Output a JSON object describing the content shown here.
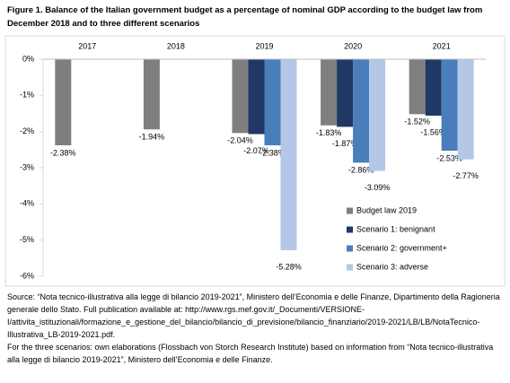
{
  "chart_data": {
    "type": "bar",
    "title": "Figure 1. Balance of the Italian government budget as a percentage of nominal GDP according to the budget law from December 2018 and to three different scenarios",
    "categories": [
      "2017",
      "2018",
      "2019",
      "2020",
      "2021"
    ],
    "series": [
      {
        "name": "Budget law 2019",
        "color": "#7f7f7f",
        "values": [
          -2.38,
          -1.94,
          -2.04,
          -1.83,
          -1.52
        ],
        "value_labels": [
          "-2.38%",
          "-1.94%",
          "-2.04%",
          "-1.83%",
          "-1.52%"
        ]
      },
      {
        "name": "Scenario 1: benignant",
        "color": "#1f3864",
        "values": [
          null,
          null,
          -2.07,
          -1.87,
          -1.56
        ],
        "value_labels": [
          null,
          null,
          "-2.07%",
          "-1.87%",
          "-1.56%"
        ]
      },
      {
        "name": "Scenario 2: government+",
        "color": "#4a7ebb",
        "values": [
          null,
          null,
          -2.38,
          -2.86,
          -2.53
        ],
        "value_labels": [
          null,
          null,
          "-2.38%",
          "-2.86%",
          "-2.53%"
        ]
      },
      {
        "name": "Scenario 3: adverse",
        "color": "#b4c7e7",
        "values": [
          null,
          null,
          -5.28,
          -3.09,
          -2.77
        ],
        "value_labels": [
          null,
          null,
          "-5.28%",
          "-3.09%",
          "-2.77%"
        ]
      }
    ],
    "ylim": [
      -6,
      0
    ],
    "yticks": [
      {
        "value": 0,
        "label": "0%"
      },
      {
        "value": -1,
        "label": "-1%"
      },
      {
        "value": -2,
        "label": "-2%"
      },
      {
        "value": -3,
        "label": "-3%"
      },
      {
        "value": -4,
        "label": "-4%"
      },
      {
        "value": -5,
        "label": "-5%"
      },
      {
        "value": -6,
        "label": "-6%"
      }
    ],
    "grid": false,
    "legend": "lower-right",
    "source": "Source: “Nota tecnico-illustrativa alla legge di bilancio 2019-2021”, Ministero dell’Economia e delle Finanze, Dipartimento della Ragioneria generale dello Stato. Full publication available at: http://www.rgs.mef.gov.it/_Documenti/VERSIONE-I/attivita_istituzionali/formazione_e_gestione_del_bilancio/bilancio_di_previsione/bilancio_finanziario/2019-2021/LB/LB/NotaTecnico-Illustrativa_LB-2019-2021.pdf.",
    "note": "For the three scenarios: own elaborations (Flossbach von Storch Research Institute) based on information from “Nota tecnico-illustrativa alla legge di bilancio 2019-2021”, Ministero dell’Economia e delle Finanze."
  }
}
